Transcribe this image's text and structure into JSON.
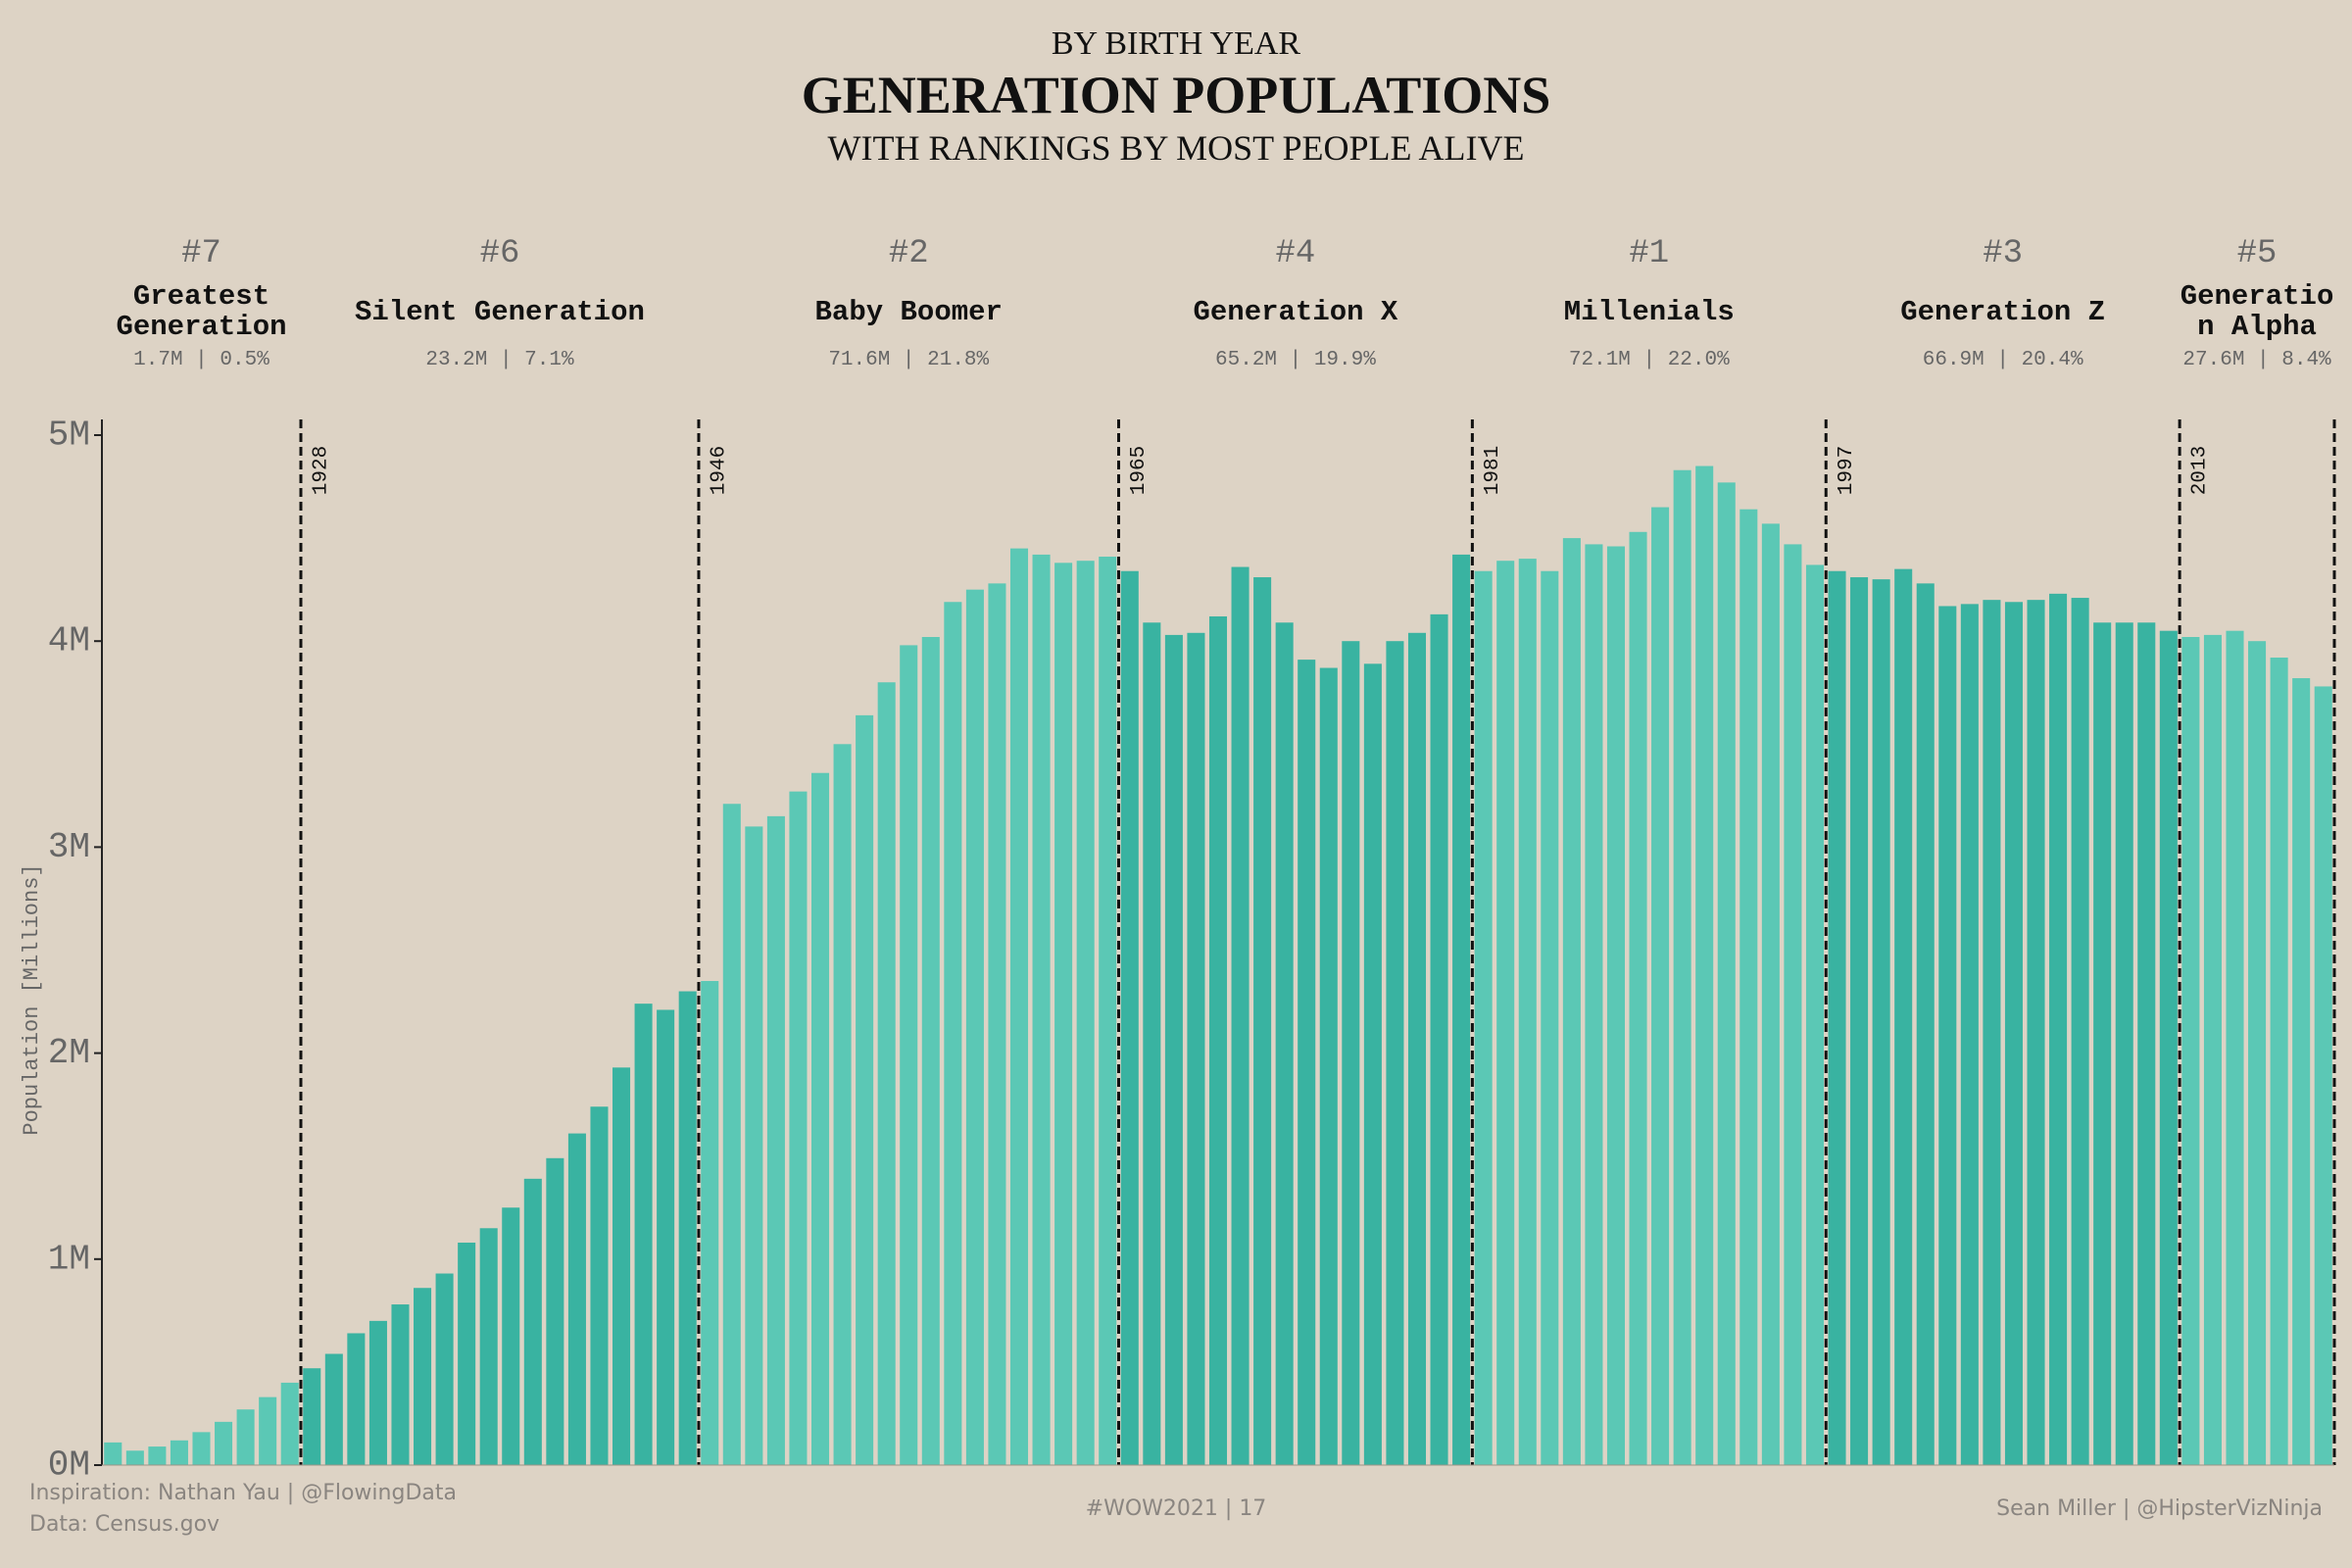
{
  "chart_data": {
    "type": "bar",
    "kicker": "BY BIRTH YEAR",
    "title": "GENERATION POPULATIONS",
    "subtitle": "WITH RANKINGS BY MOST PEOPLE ALIVE",
    "ylabel": "Population [Millions]",
    "ylim": [
      0,
      5
    ],
    "yticks": [
      {
        "value": 0,
        "label": "0M"
      },
      {
        "value": 1,
        "label": "1M"
      },
      {
        "value": 2,
        "label": "2M"
      },
      {
        "value": 3,
        "label": "3M"
      },
      {
        "value": 4,
        "label": "4M"
      },
      {
        "value": 5,
        "label": "5M"
      }
    ],
    "generations": [
      {
        "rank": "#7",
        "name": "Greatest Generation",
        "summary": "1.7M | 0.5%",
        "color": "#5bc8b5",
        "values": [
          0.11,
          0.07,
          0.09,
          0.12,
          0.16,
          0.21,
          0.27,
          0.33,
          0.4
        ]
      },
      {
        "rank": "#6",
        "name": "Silent Generation",
        "summary": "23.2M | 7.1%",
        "start": "1928",
        "color": "#39b3a1",
        "values": [
          0.47,
          0.54,
          0.64,
          0.7,
          0.78,
          0.86,
          0.93,
          1.08,
          1.15,
          1.25,
          1.39,
          1.49,
          1.61,
          1.74,
          1.93,
          2.24,
          2.21,
          2.3
        ]
      },
      {
        "rank": "#2",
        "name": "Baby Boomer",
        "summary": "71.6M | 21.8%",
        "start": "1946",
        "color": "#5bc8b5",
        "values": [
          2.35,
          3.21,
          3.1,
          3.15,
          3.27,
          3.36,
          3.5,
          3.64,
          3.8,
          3.98,
          4.02,
          4.19,
          4.25,
          4.28,
          4.45,
          4.42,
          4.38,
          4.39,
          4.41
        ]
      },
      {
        "rank": "#4",
        "name": "Generation X",
        "summary": "65.2M | 19.9%",
        "start": "1965",
        "color": "#39b3a1",
        "values": [
          4.34,
          4.09,
          4.03,
          4.04,
          4.12,
          4.36,
          4.31,
          4.09,
          3.91,
          3.87,
          4.0,
          3.89,
          4.0,
          4.04,
          4.13,
          4.42
        ]
      },
      {
        "rank": "#1",
        "name": "Millenials",
        "summary": "72.1M | 22.0%",
        "start": "1981",
        "color": "#5bc8b5",
        "values": [
          4.34,
          4.39,
          4.4,
          4.34,
          4.5,
          4.47,
          4.46,
          4.53,
          4.65,
          4.83,
          4.85,
          4.77,
          4.64,
          4.57,
          4.47,
          4.37
        ]
      },
      {
        "rank": "#3",
        "name": "Generation Z",
        "summary": "66.9M | 20.4%",
        "start": "1997",
        "color": "#39b3a1",
        "values": [
          4.34,
          4.31,
          4.3,
          4.35,
          4.28,
          4.17,
          4.18,
          4.2,
          4.19,
          4.2,
          4.23,
          4.21,
          4.09,
          4.09,
          4.09,
          4.05
        ]
      },
      {
        "rank": "#5",
        "name": "Generation Alpha",
        "summary": "27.6M | 8.4%",
        "start": "2013",
        "color": "#5bc8b5",
        "values": [
          4.02,
          4.03,
          4.05,
          4.0,
          3.92,
          3.82,
          3.78
        ]
      }
    ]
  },
  "footer": {
    "inspiration": "Inspiration: Nathan Yau | @FlowingData",
    "source": "Data: Census.gov",
    "tag": "#WOW2021 | 17",
    "author": "Sean Miller | @HipsterVizNinja"
  }
}
